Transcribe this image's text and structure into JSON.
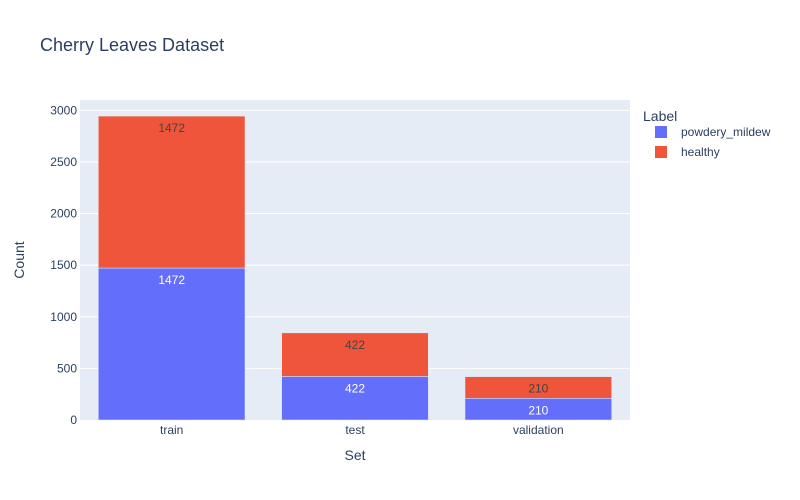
{
  "chart_data": {
    "type": "bar",
    "barmode": "stack",
    "title": "Cherry Leaves Dataset",
    "xlabel": "Set",
    "ylabel": "Count",
    "categories": [
      "train",
      "test",
      "validation"
    ],
    "series": [
      {
        "name": "powdery_mildew",
        "values": [
          1472,
          422,
          210
        ],
        "color": "#636efa",
        "label_color": "#ffffff"
      },
      {
        "name": "healthy",
        "values": [
          1472,
          422,
          210
        ],
        "color": "#ef553b",
        "label_color": "#444444"
      }
    ],
    "ylim": [
      0,
      3100
    ],
    "yticks": [
      0,
      500,
      1000,
      1500,
      2000,
      2500,
      3000
    ],
    "legend": {
      "title": "Label",
      "placement": "top-right"
    },
    "grid": true,
    "plot_background": "#e5ecf6"
  }
}
